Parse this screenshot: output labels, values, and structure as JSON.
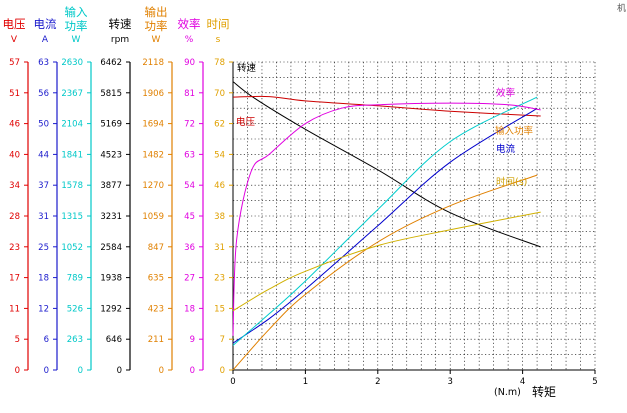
{
  "chart_data": {
    "type": "line",
    "corner_mark": "机",
    "x": {
      "unit": "(N.m)",
      "label": "转矩",
      "ticks": [
        "0",
        "1",
        "2",
        "3",
        "4",
        "5"
      ],
      "range": [
        0,
        5
      ]
    },
    "scales": [
      {
        "key": "V",
        "title": [
          "电压"
        ],
        "unit": "V",
        "color": "#e00000",
        "ticks": [
          "0",
          "5",
          "11",
          "17",
          "23",
          "28",
          "34",
          "40",
          "46",
          "51",
          "57"
        ]
      },
      {
        "key": "A",
        "title": [
          "电流"
        ],
        "unit": "A",
        "color": "#1a1acc",
        "ticks": [
          "0",
          "6",
          "12",
          "18",
          "25",
          "31",
          "37",
          "44",
          "50",
          "56",
          "63"
        ]
      },
      {
        "key": "W_in",
        "title": [
          "输入",
          "功率"
        ],
        "unit": "W",
        "color": "#00c8c8",
        "ticks": [
          "0",
          "263",
          "526",
          "789",
          "1052",
          "1315",
          "1578",
          "1841",
          "2104",
          "2367",
          "2630"
        ]
      },
      {
        "key": "rpm",
        "title": [
          "转速"
        ],
        "unit": "rpm",
        "color": "#000000",
        "ticks": [
          "0",
          "646",
          "1292",
          "1938",
          "2584",
          "3231",
          "3877",
          "4523",
          "5169",
          "5815",
          "6462"
        ]
      },
      {
        "key": "W_out",
        "title": [
          "输出",
          "功率"
        ],
        "unit": "W",
        "color": "#e08000",
        "ticks": [
          "0",
          "211",
          "423",
          "635",
          "847",
          "1059",
          "1270",
          "1482",
          "1694",
          "1906",
          "2118"
        ]
      },
      {
        "key": "eff",
        "title": [
          "效率"
        ],
        "unit": "%",
        "color": "#e000e0",
        "ticks": [
          "0",
          "9",
          "18",
          "27",
          "36",
          "45",
          "54",
          "63",
          "72",
          "81",
          "90"
        ]
      },
      {
        "key": "t",
        "title": [
          "时间"
        ],
        "unit": "s",
        "color": "#e0a000",
        "ticks": [
          "0",
          "7",
          "15",
          "23",
          "31",
          "38",
          "46",
          "54",
          "62",
          "70",
          "78"
        ]
      }
    ],
    "grid": true,
    "series": [
      {
        "name": "转速",
        "scale": "rpm",
        "color": "#000000",
        "x": [
          0,
          0.3,
          1,
          2,
          3,
          4.25
        ],
        "y": [
          6050,
          5700,
          5050,
          4200,
          3300,
          2580
        ]
      },
      {
        "name": "电压",
        "scale": "V",
        "color": "#cc0000",
        "x": [
          0,
          0.5,
          1,
          2,
          3,
          4.25
        ],
        "y": [
          50.5,
          50.6,
          49.8,
          48.9,
          47.9,
          47.0
        ]
      },
      {
        "name": "电流",
        "scale": "A",
        "color": "#0000cc",
        "x": [
          0,
          0.5,
          1,
          2,
          3,
          4.2
        ],
        "y": [
          5.5,
          10.5,
          16.5,
          29.5,
          42.5,
          53.5
        ]
      },
      {
        "name": "输入功率",
        "scale": "W_in",
        "color": "#00cccc",
        "x": [
          0,
          0.5,
          1,
          2,
          3,
          4.2
        ],
        "y": [
          210,
          480,
          760,
          1370,
          1950,
          2330
        ]
      },
      {
        "name": "输出功率",
        "scale": "W_out",
        "color": "#e08000",
        "x": [
          0,
          0.5,
          1,
          2,
          3,
          4.2
        ],
        "y": [
          0,
          280,
          520,
          880,
          1130,
          1340
        ]
      },
      {
        "name": "效率",
        "scale": "eff",
        "color": "#e000e0",
        "x": [
          0,
          0.05,
          0.25,
          0.5,
          1,
          1.5,
          2,
          3,
          3.8,
          4.25
        ],
        "y": [
          10,
          38,
          58,
          63,
          72,
          76.5,
          77.5,
          78,
          77.5,
          76
        ]
      },
      {
        "name": "时间(s)",
        "scale": "t",
        "color": "#d0b000",
        "x": [
          0,
          0.5,
          1,
          2,
          3,
          4.25
        ],
        "y": [
          15,
          20.5,
          25,
          31.5,
          35.5,
          40
        ]
      }
    ],
    "annotations": {
      "rpm": "转速",
      "V": "电压",
      "A": "电流",
      "W_in": "输入功率",
      "eff": "效率",
      "t": "时间(s)"
    }
  }
}
